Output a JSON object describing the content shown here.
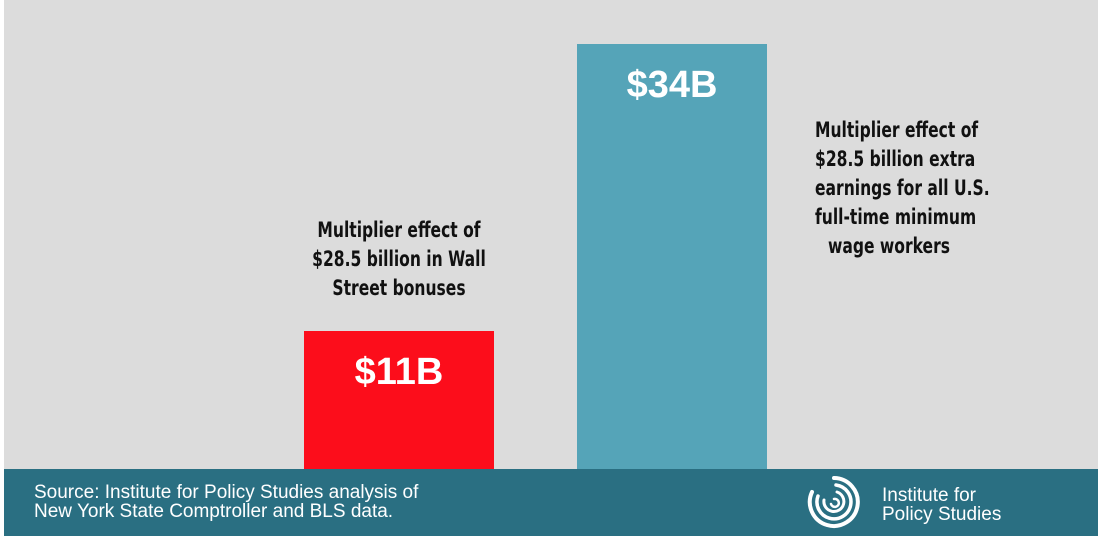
{
  "chart_data": {
    "type": "bar",
    "categories": [
      "Multiplier effect of $28.5 billion in Wall Street bonuses",
      "Multiplier effect of $28.5 billion extra earnings for all U.S. full-time minimum wage workers"
    ],
    "values": [
      11,
      34
    ],
    "value_labels": [
      "$11B",
      "$34B"
    ],
    "annotations": [
      [
        "Multiplier effect of",
        "$28.5 billion in Wall",
        "Street bonuses"
      ],
      [
        "Multiplier effect of",
        "$28.5 billion extra",
        "earnings for all U.S.",
        "full-time minimum",
        "wage workers"
      ]
    ],
    "colors": [
      "#fc0d1b",
      "#55a4b8"
    ],
    "ylim": [
      0,
      37.5
    ],
    "grid": false,
    "legend": "none"
  },
  "footer": {
    "source_lines": [
      "Source: Institute for Policy Studies analysis of",
      "New York State Comptroller and BLS data."
    ],
    "org_lines": [
      "Institute for",
      "Policy Studies"
    ],
    "logo_icon": "concentric-swirl-icon",
    "background_color": "#2a6f82"
  }
}
